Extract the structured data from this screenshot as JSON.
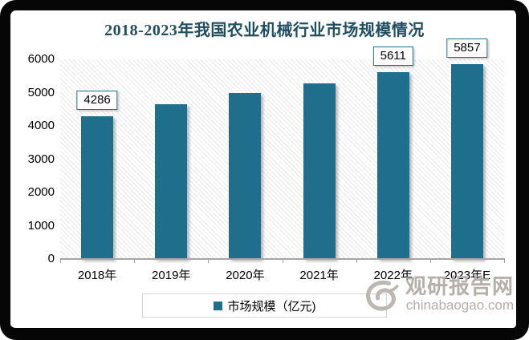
{
  "chart_data": {
    "type": "bar",
    "title": "2018-2023年我国农业机械行业市场规模情况",
    "categories": [
      "2018年",
      "2019年",
      "2020年",
      "2021年",
      "2022年",
      "2023年E"
    ],
    "values": [
      4286,
      4660,
      4980,
      5270,
      5611,
      5857
    ],
    "data_labels": [
      "4286",
      "",
      "",
      "",
      "5611",
      "5857"
    ],
    "ylim": [
      0,
      6000
    ],
    "yticks": [
      6000,
      5000,
      4000,
      3000,
      2000,
      1000,
      0
    ],
    "xlabel": "",
    "ylabel": "",
    "legend": {
      "position": "bottom",
      "entries": [
        "市场规模（亿元)"
      ]
    },
    "grid": false,
    "colors": {
      "bar": "#1F6E8C",
      "title": "#1F4E63",
      "axis_line": "#a6a6a6",
      "plot_hatch": "#e9e9e9"
    }
  },
  "watermark": {
    "logo": "swirl-logo",
    "site_name": "观研报告网",
    "site_url": "chinabaogao.com",
    "color": "#b5afa9"
  }
}
